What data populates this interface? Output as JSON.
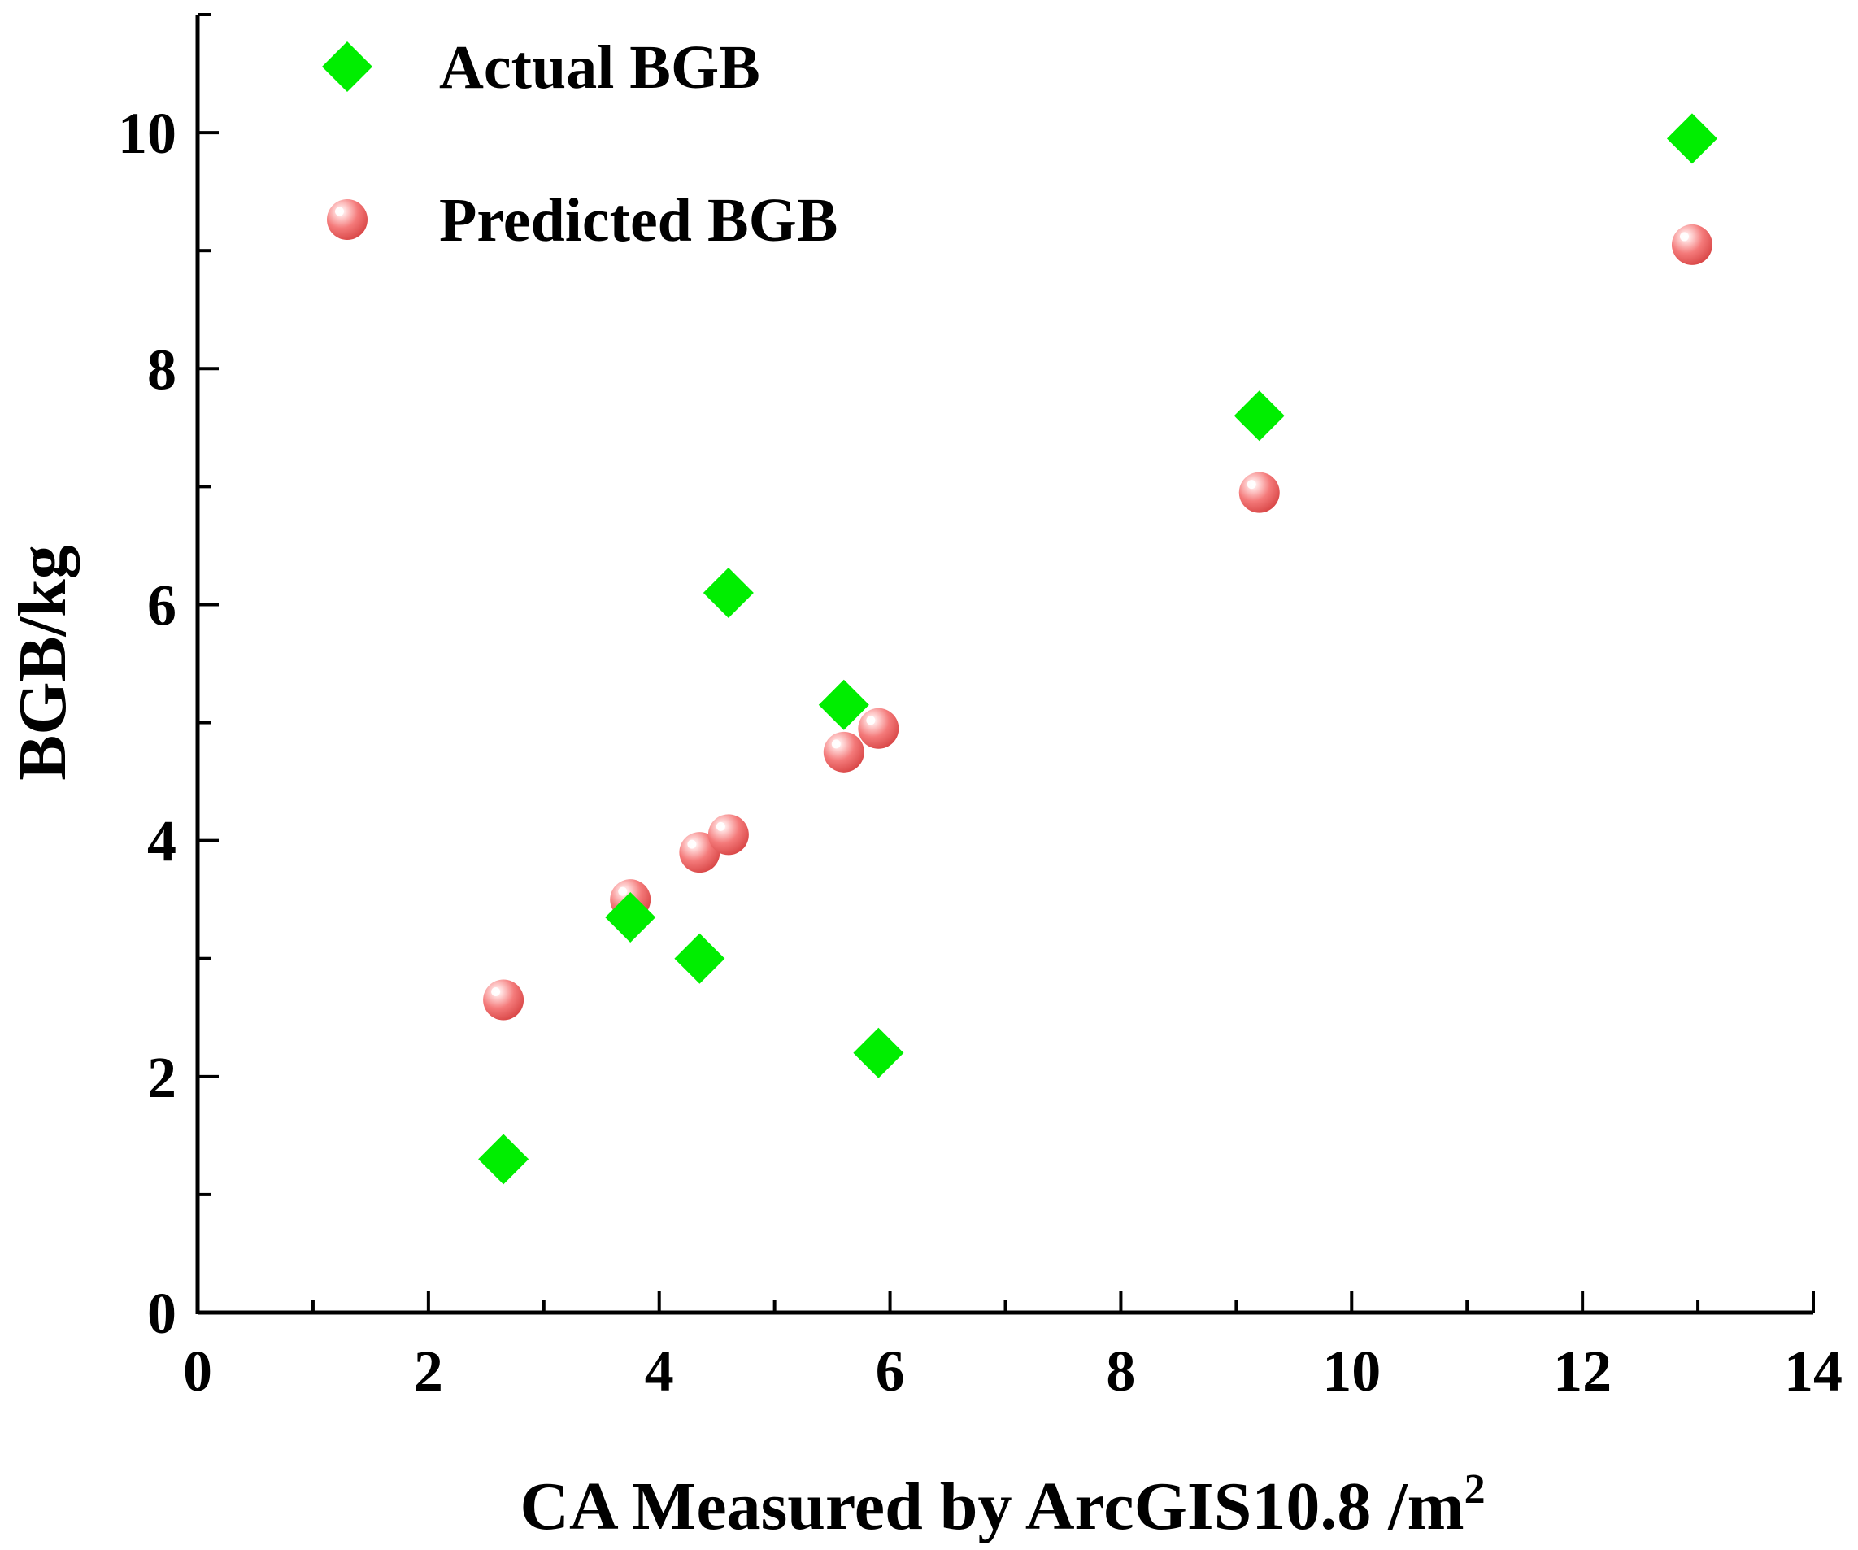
{
  "chart_data": {
    "type": "scatter",
    "title": "",
    "xlabel": "CA Measured by ArcGIS10.8 /m",
    "xlabel_superscript": "2",
    "ylabel": "BGB/kg",
    "xlim": [
      0,
      14
    ],
    "ylim": [
      0,
      11
    ],
    "x_ticks": [
      0,
      2,
      4,
      6,
      8,
      10,
      12,
      14
    ],
    "y_ticks": [
      0,
      2,
      4,
      6,
      8,
      10
    ],
    "x_minor_step": 1,
    "y_minor_step": 1,
    "grid": false,
    "legend_position": "top-left",
    "series": [
      {
        "name": "Actual BGB",
        "marker": "diamond",
        "color": "#00ee00",
        "points": [
          {
            "x": 2.65,
            "y": 1.3
          },
          {
            "x": 3.75,
            "y": 3.35
          },
          {
            "x": 4.35,
            "y": 3.0
          },
          {
            "x": 4.6,
            "y": 6.1
          },
          {
            "x": 5.6,
            "y": 5.15
          },
          {
            "x": 5.9,
            "y": 2.2
          },
          {
            "x": 9.2,
            "y": 7.6
          },
          {
            "x": 12.95,
            "y": 9.95
          }
        ]
      },
      {
        "name": "Predicted BGB",
        "marker": "sphere",
        "color": "#f06a6a",
        "points": [
          {
            "x": 2.65,
            "y": 2.65
          },
          {
            "x": 3.75,
            "y": 3.5
          },
          {
            "x": 4.35,
            "y": 3.9
          },
          {
            "x": 4.6,
            "y": 4.05
          },
          {
            "x": 5.6,
            "y": 4.75
          },
          {
            "x": 5.9,
            "y": 4.95
          },
          {
            "x": 9.2,
            "y": 6.95
          },
          {
            "x": 12.95,
            "y": 9.05
          }
        ]
      }
    ]
  }
}
